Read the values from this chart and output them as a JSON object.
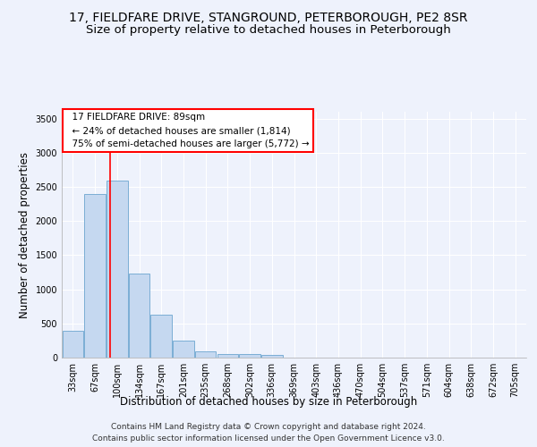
{
  "title_line1": "17, FIELDFARE DRIVE, STANGROUND, PETERBOROUGH, PE2 8SR",
  "title_line2": "Size of property relative to detached houses in Peterborough",
  "xlabel": "Distribution of detached houses by size in Peterborough",
  "ylabel": "Number of detached properties",
  "bar_color": "#c5d8f0",
  "bar_edge_color": "#7baed4",
  "bar_values": [
    390,
    2400,
    2590,
    1230,
    630,
    250,
    90,
    55,
    55,
    40,
    0,
    0,
    0,
    0,
    0,
    0,
    0,
    0,
    0,
    0,
    0
  ],
  "x_labels": [
    "33sqm",
    "67sqm",
    "100sqm",
    "134sqm",
    "167sqm",
    "201sqm",
    "235sqm",
    "268sqm",
    "302sqm",
    "336sqm",
    "369sqm",
    "403sqm",
    "436sqm",
    "470sqm",
    "504sqm",
    "537sqm",
    "571sqm",
    "604sqm",
    "638sqm",
    "672sqm",
    "705sqm"
  ],
  "ylim": [
    0,
    3600
  ],
  "yticks": [
    0,
    500,
    1000,
    1500,
    2000,
    2500,
    3000,
    3500
  ],
  "annotation_text": "  17 FIELDFARE DRIVE: 89sqm\n  ← 24% of detached houses are smaller (1,814)\n  75% of semi-detached houses are larger (5,772) →",
  "annotation_box_color": "white",
  "annotation_box_edge_color": "red",
  "vline_x": 1.67,
  "vline_color": "red",
  "vline_lw": 1.2,
  "footer_line1": "Contains HM Land Registry data © Crown copyright and database right 2024.",
  "footer_line2": "Contains public sector information licensed under the Open Government Licence v3.0.",
  "bg_color": "#eef2fc",
  "plot_bg_color": "#eef2fc",
  "grid_color": "#ffffff",
  "title_fontsize": 10,
  "subtitle_fontsize": 9.5,
  "tick_fontsize": 7,
  "ylabel_fontsize": 8.5,
  "xlabel_fontsize": 8.5,
  "footer_fontsize": 6.5
}
